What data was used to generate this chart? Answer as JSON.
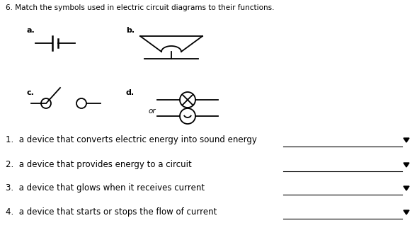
{
  "title": "6. Match the symbols used in electric circuit diagrams to their functions.",
  "label_a": "a.",
  "label_b": "b.",
  "label_c": "c.",
  "label_d": "d.",
  "or_text": "or",
  "items": [
    "1.  a device that converts electric energy into sound energy",
    "2.  a device that provides energy to a circuit",
    "3.  a device that glows when it receives current",
    "4.  a device that starts or stops the flow of current"
  ],
  "bg_color": "#ffffff",
  "text_color": "#000000",
  "line_color": "#000000",
  "font_size_title": 7.5,
  "font_size_labels": 8.0,
  "font_size_items": 8.5
}
